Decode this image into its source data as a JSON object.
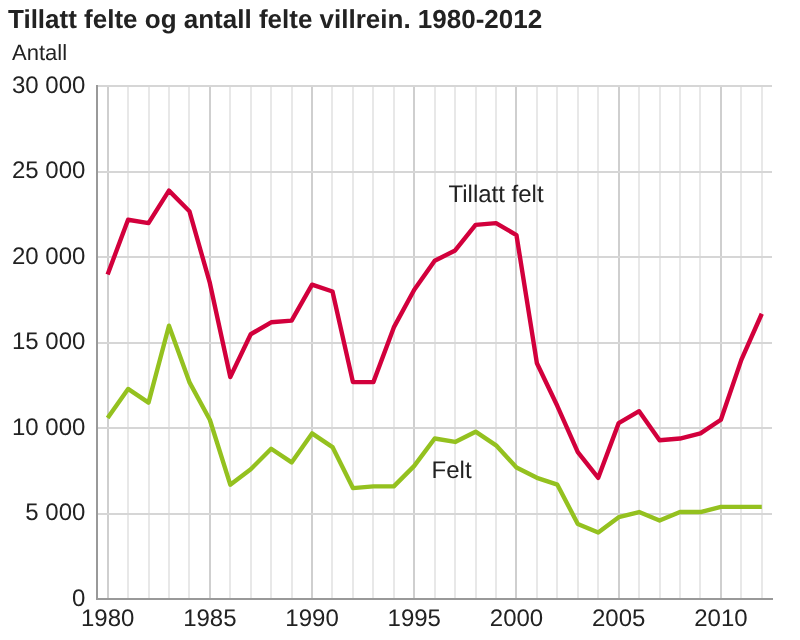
{
  "chart_data": {
    "type": "line",
    "title": "Tillatt felte og antall felte villrein. 1980-2012",
    "ylabel": "Antall",
    "x": [
      1980,
      1981,
      1982,
      1983,
      1984,
      1985,
      1986,
      1987,
      1988,
      1989,
      1990,
      1991,
      1992,
      1993,
      1994,
      1995,
      1996,
      1997,
      1998,
      1999,
      2000,
      2001,
      2002,
      2003,
      2004,
      2005,
      2006,
      2007,
      2008,
      2009,
      2010,
      2011,
      2012
    ],
    "series": [
      {
        "name": "Tillatt felt",
        "color": "#d2003c",
        "values": [
          19000,
          22200,
          22000,
          23900,
          22700,
          18500,
          13000,
          15500,
          16200,
          16300,
          18400,
          18000,
          12700,
          12700,
          15900,
          18100,
          19800,
          20400,
          21900,
          22000,
          21300,
          13800,
          11300,
          8600,
          7100,
          10300,
          11000,
          9300,
          9400,
          9700,
          10500,
          14000,
          16700
        ]
      },
      {
        "name": "Felt",
        "color": "#94c11f",
        "values": [
          10600,
          12300,
          11500,
          16000,
          12700,
          10500,
          6700,
          7600,
          8800,
          8000,
          9700,
          8900,
          6500,
          6600,
          6600,
          7800,
          9400,
          9200,
          9800,
          9000,
          7700,
          7100,
          6700,
          4400,
          3900,
          4800,
          5100,
          4600,
          5100,
          5100,
          5400,
          5400,
          5400
        ]
      }
    ],
    "xlim": [
      1979.5,
      2012.5
    ],
    "xticks": [
      1980,
      {
        "value": 1981,
        "label": null
      },
      {
        "value": 1982,
        "label": null
      },
      {
        "value": 1983,
        "label": null
      },
      {
        "value": 1984,
        "label": null
      },
      1985,
      {
        "value": 1986,
        "label": null
      },
      {
        "value": 1987,
        "label": null
      },
      {
        "value": 1988,
        "label": null
      },
      {
        "value": 1989,
        "label": null
      },
      1990,
      {
        "value": 1991,
        "label": null
      },
      {
        "value": 1992,
        "label": null
      },
      {
        "value": 1993,
        "label": null
      },
      {
        "value": 1994,
        "label": null
      },
      1995,
      {
        "value": 1996,
        "label": null
      },
      {
        "value": 1997,
        "label": null
      },
      {
        "value": 1998,
        "label": null
      },
      {
        "value": 1999,
        "label": null
      },
      2000,
      {
        "value": 2001,
        "label": null
      },
      {
        "value": 2002,
        "label": null
      },
      {
        "value": 2003,
        "label": null
      },
      {
        "value": 2004,
        "label": null
      },
      2005,
      {
        "value": 2006,
        "label": null
      },
      {
        "value": 2007,
        "label": null
      },
      {
        "value": 2008,
        "label": null
      },
      {
        "value": 2009,
        "label": null
      },
      2010,
      {
        "value": 2011,
        "label": null
      },
      {
        "value": 2012,
        "label": null
      }
    ],
    "ylim": [
      0,
      30000
    ],
    "yticks": [
      0,
      {
        "value": 5000,
        "label": "5 000"
      },
      {
        "value": 10000,
        "label": "10 000"
      },
      {
        "value": 15000,
        "label": "15 000"
      },
      {
        "value": 20000,
        "label": "20 000"
      },
      {
        "value": 25000,
        "label": "25 000"
      },
      {
        "value": 30000,
        "label": "30 000"
      }
    ],
    "grid": true,
    "legend": false,
    "marker": "none",
    "line_style": "solid"
  }
}
